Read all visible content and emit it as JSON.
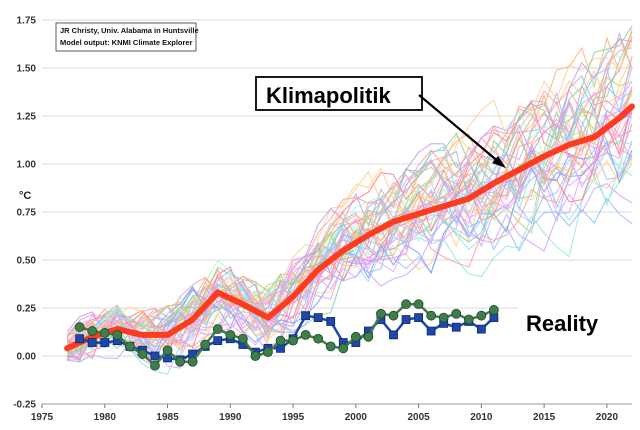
{
  "chart_data": {
    "type": "line",
    "ylabel": "°C",
    "xlim": [
      1975,
      2022
    ],
    "ylim": [
      -0.25,
      1.75
    ],
    "xticks": [
      1975,
      1980,
      1985,
      1990,
      1995,
      2000,
      2005,
      2010,
      2015,
      2020
    ],
    "yticks": [
      -0.25,
      0.0,
      0.25,
      0.5,
      0.75,
      1.0,
      1.25,
      1.5,
      1.75
    ],
    "ytick_labels": [
      "-0.25",
      "0.00",
      "0.25",
      "0.50",
      "0.75",
      "1.00",
      "1.25",
      "1.50",
      "1.75"
    ],
    "credit_lines": [
      "JR Christy, Univ. Alabama in Huntsville",
      "Model output: KNMI Climate Explorer"
    ],
    "annotations": {
      "klimapolitik": "Klimapolitik",
      "reality": "Reality"
    },
    "grid": true,
    "model_mean": {
      "color": "#ff3b1f",
      "x": [
        1977,
        1979,
        1981,
        1983,
        1985,
        1987,
        1989,
        1991,
        1993,
        1995,
        1997,
        1999,
        2001,
        2003,
        2005,
        2007,
        2009,
        2011,
        2013,
        2015,
        2017,
        2019,
        2021,
        2022
      ],
      "y": [
        0.04,
        0.1,
        0.14,
        0.11,
        0.11,
        0.19,
        0.33,
        0.27,
        0.2,
        0.31,
        0.45,
        0.55,
        0.63,
        0.7,
        0.74,
        0.78,
        0.82,
        0.9,
        0.97,
        1.04,
        1.1,
        1.14,
        1.24,
        1.3
      ]
    },
    "observations": [
      {
        "marker": "square",
        "color": "#1f47a8",
        "x": [
          1978,
          1979,
          1980,
          1981,
          1982,
          1983,
          1984,
          1985,
          1986,
          1987,
          1988,
          1989,
          1990,
          1991,
          1992,
          1993,
          1994,
          1995,
          1996,
          1997,
          1998,
          1999,
          2000,
          2001,
          2002,
          2003,
          2004,
          2005,
          2006,
          2007,
          2008,
          2009,
          2010,
          2011
        ],
        "y": [
          0.09,
          0.07,
          0.07,
          0.08,
          0.05,
          0.03,
          0.0,
          -0.01,
          -0.02,
          0.01,
          0.05,
          0.08,
          0.09,
          0.06,
          0.02,
          0.04,
          0.04,
          0.09,
          0.21,
          0.2,
          0.18,
          0.07,
          0.07,
          0.13,
          0.19,
          0.11,
          0.19,
          0.2,
          0.13,
          0.17,
          0.15,
          0.18,
          0.14,
          0.2
        ]
      },
      {
        "marker": "circle",
        "color": "#3f7e4a",
        "x": [
          1978,
          1979,
          1980,
          1981,
          1982,
          1983,
          1984,
          1985,
          1986,
          1987,
          1988,
          1989,
          1990,
          1991,
          1992,
          1993,
          1994,
          1995,
          1996,
          1997,
          1998,
          1999,
          2000,
          2001,
          2002,
          2003,
          2004,
          2005,
          2006,
          2007,
          2008,
          2009,
          2010,
          2011
        ],
        "y": [
          0.15,
          0.13,
          0.12,
          0.11,
          0.05,
          0.01,
          -0.05,
          0.03,
          -0.03,
          -0.03,
          0.06,
          0.14,
          0.11,
          0.09,
          0.0,
          0.02,
          0.08,
          0.08,
          0.11,
          0.09,
          0.05,
          0.04,
          0.1,
          0.1,
          0.22,
          0.21,
          0.27,
          0.27,
          0.21,
          0.2,
          0.22,
          0.19,
          0.21,
          0.24
        ]
      }
    ],
    "model_runs_palette": [
      "#ff9bb3",
      "#9fd4ff",
      "#c2a2e6",
      "#ffd27d",
      "#8fd19e",
      "#f3a0ff",
      "#a7b8ff",
      "#ffb17a",
      "#98e5e0",
      "#ff7f7f",
      "#b6d76f",
      "#d2a3ff",
      "#ff8fd8",
      "#7fa0ff",
      "#ffa0a0",
      "#a0ffd2",
      "#ffcf9a",
      "#8fbfff"
    ]
  }
}
